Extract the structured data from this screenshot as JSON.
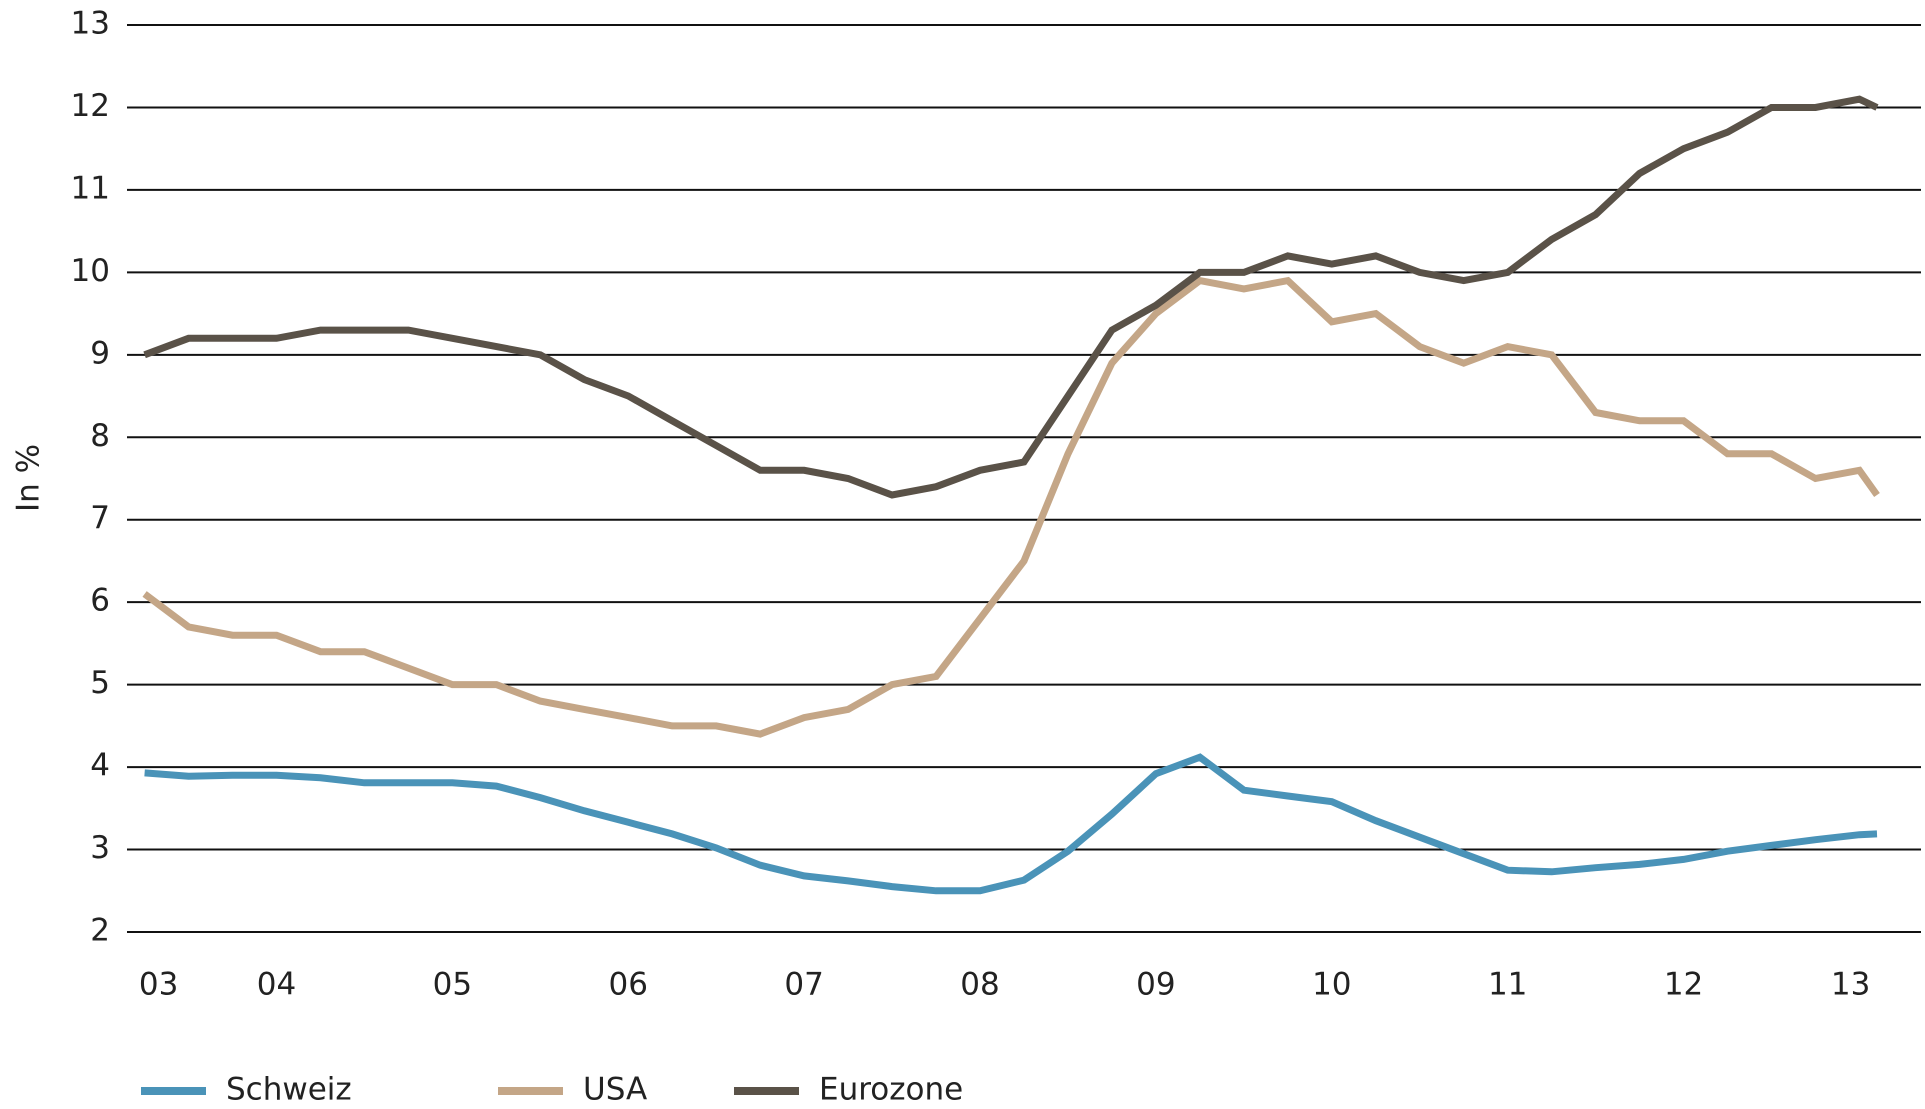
{
  "chart_data": {
    "type": "line",
    "y_label": "In %",
    "x": [
      2003.75,
      2004.0,
      2004.25,
      2004.5,
      2004.75,
      2005.0,
      2005.25,
      2005.5,
      2005.75,
      2006.0,
      2006.25,
      2006.5,
      2006.75,
      2007.0,
      2007.25,
      2007.5,
      2007.75,
      2008.0,
      2008.25,
      2008.5,
      2008.75,
      2009.0,
      2009.25,
      2009.5,
      2009.75,
      2010.0,
      2010.25,
      2010.5,
      2010.75,
      2011.0,
      2011.25,
      2011.5,
      2011.75,
      2012.0,
      2012.25,
      2012.5,
      2012.75,
      2013.0,
      2013.25,
      2013.5,
      2013.6
    ],
    "series": [
      {
        "name": "Schweiz",
        "color": "#4a93b8",
        "values": [
          3.93,
          3.89,
          3.9,
          3.9,
          3.87,
          3.81,
          3.81,
          3.81,
          3.77,
          3.63,
          3.47,
          3.33,
          3.19,
          3.02,
          2.81,
          2.68,
          2.62,
          2.55,
          2.5,
          2.5,
          2.63,
          2.98,
          3.43,
          3.92,
          4.12,
          3.72,
          3.65,
          3.58,
          3.35,
          3.15,
          2.95,
          2.75,
          2.73,
          2.78,
          2.82,
          2.88,
          2.98,
          3.05,
          3.12,
          3.18,
          3.19
        ]
      },
      {
        "name": "USA",
        "color": "#c4a687",
        "values": [
          6.1,
          5.7,
          5.6,
          5.6,
          5.4,
          5.4,
          5.2,
          5.0,
          5.0,
          4.8,
          4.7,
          4.6,
          4.5,
          4.5,
          4.4,
          4.6,
          4.7,
          5.0,
          5.1,
          5.8,
          6.5,
          7.8,
          8.9,
          9.5,
          9.9,
          9.8,
          9.9,
          9.4,
          9.5,
          9.1,
          8.9,
          9.1,
          9.0,
          8.3,
          8.2,
          8.2,
          7.8,
          7.8,
          7.5,
          7.6,
          7.3
        ]
      },
      {
        "name": "Eurozone",
        "color": "#5a5248",
        "values": [
          9.0,
          9.2,
          9.2,
          9.2,
          9.3,
          9.3,
          9.3,
          9.2,
          9.1,
          9.0,
          8.7,
          8.5,
          8.2,
          7.9,
          7.6,
          7.6,
          7.5,
          7.3,
          7.4,
          7.6,
          7.7,
          8.5,
          9.3,
          9.6,
          10.0,
          10.0,
          10.2,
          10.1,
          10.2,
          10.0,
          9.9,
          10.0,
          10.4,
          10.7,
          11.2,
          11.5,
          11.7,
          12.0,
          12.0,
          12.1,
          12.0
        ]
      }
    ],
    "xlim": [
      2003.65,
      2013.85
    ],
    "xticks": [
      {
        "value": 2003.83,
        "label": "03"
      },
      {
        "value": 2004.5,
        "label": "04"
      },
      {
        "value": 2005.5,
        "label": "05"
      },
      {
        "value": 2006.5,
        "label": "06"
      },
      {
        "value": 2007.5,
        "label": "07"
      },
      {
        "value": 2008.5,
        "label": "08"
      },
      {
        "value": 2009.5,
        "label": "09"
      },
      {
        "value": 2010.5,
        "label": "10"
      },
      {
        "value": 2011.5,
        "label": "11"
      },
      {
        "value": 2012.5,
        "label": "12"
      },
      {
        "value": 2013.45,
        "label": "13"
      }
    ],
    "ylim": [
      2,
      13
    ],
    "yticks": [
      2,
      3,
      4,
      5,
      6,
      7,
      8,
      9,
      10,
      11,
      12,
      13
    ],
    "grid": true,
    "legend": "bottom"
  }
}
